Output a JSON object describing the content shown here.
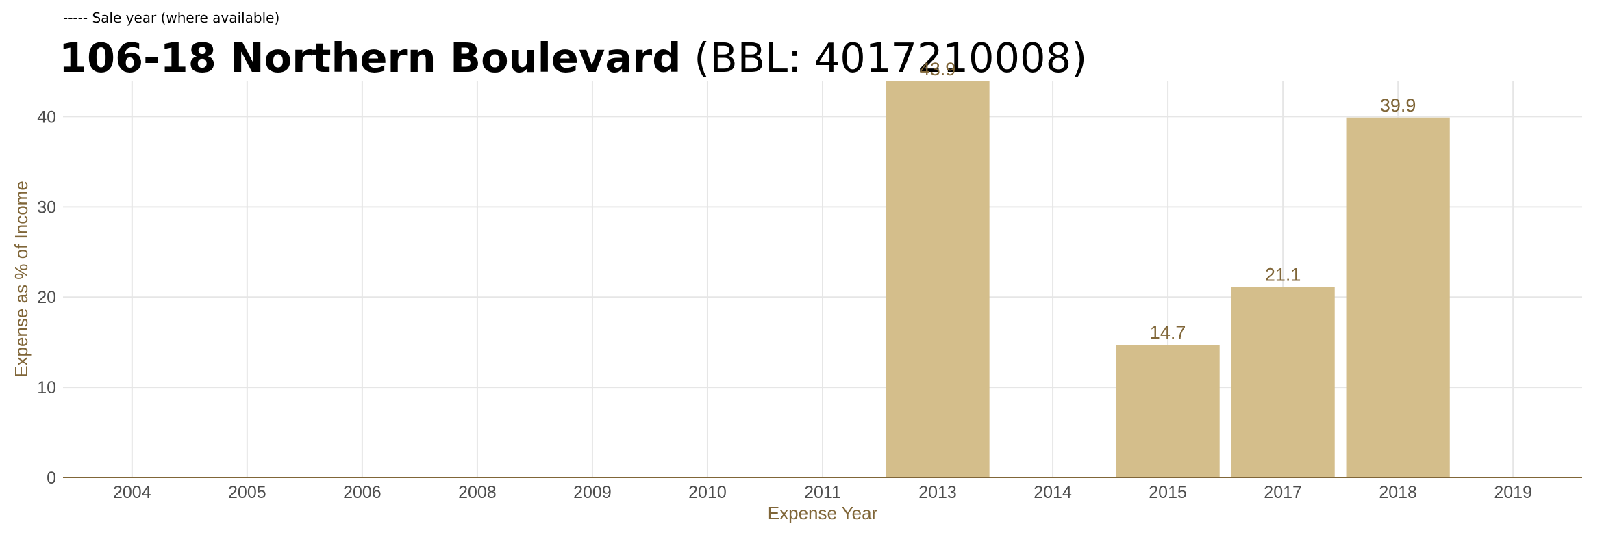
{
  "legend_note": "----- Sale year (where available)",
  "title_name": "106-18 Northern Boulevard",
  "title_bbl": "(BBL: 4017210008)",
  "colors": {
    "bar": "#d4be8b",
    "axis_label": "#806638",
    "label": "#806638",
    "grid": "#e6e6e6",
    "tick": "#4d4d4d"
  },
  "chart_data": {
    "type": "bar",
    "categories": [
      "2004",
      "2005",
      "2006",
      "2008",
      "2009",
      "2010",
      "2011",
      "2013",
      "2014",
      "2015",
      "2017",
      "2018",
      "2019"
    ],
    "values": [
      0,
      0,
      0,
      0,
      0,
      0,
      0,
      43.9,
      0,
      14.7,
      21.1,
      39.9,
      0
    ],
    "labels": [
      "",
      "",
      "",
      "",
      "",
      "",
      "",
      "43.9",
      "",
      "14.7",
      "21.1",
      "39.9",
      ""
    ],
    "xlabel": "Expense Year",
    "ylabel": "Expense as % of Income",
    "ylim": [
      0,
      43.9
    ],
    "yticks": [
      0,
      10,
      20,
      30,
      40
    ],
    "grid": true
  }
}
